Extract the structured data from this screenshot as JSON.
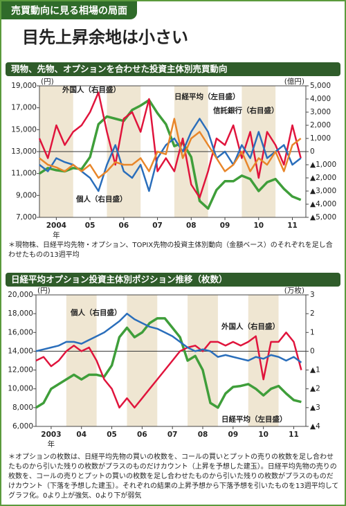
{
  "header": {
    "tag": "売買動向に見る相場の局面",
    "title": "目先上昇余地は小さい"
  },
  "chart_data": [
    {
      "type": "line",
      "title": "現物、先物、オプションを合わせた投資主体別売買動向",
      "y_unit": "(円)",
      "y2_unit": "(億円)",
      "x_label": "年",
      "note": "＊現物株、日経平均先物・オプション、TOPIX先物の投資主体別動向（金額ベース）のそれぞれを足し合わせたものの13週平均",
      "x": [
        2004,
        2004.25,
        2004.5,
        2004.75,
        2005,
        2005.25,
        2005.5,
        2005.75,
        2006,
        2006.25,
        2006.5,
        2006.75,
        2007,
        2007.25,
        2007.5,
        2007.75,
        2008,
        2008.25,
        2008.5,
        2008.75,
        2009,
        2009.25,
        2009.5,
        2009.75,
        2010,
        2010.25,
        2010.5,
        2010.75,
        2011,
        2011.25,
        2011.5,
        2011.75
      ],
      "xlim": [
        2004,
        2011.9
      ],
      "xticks": [
        {
          "value": 2004.5,
          "label": "2004"
        },
        {
          "value": 2005.5,
          "label": "05"
        },
        {
          "value": 2006.5,
          "label": "06"
        },
        {
          "value": 2007.5,
          "label": "07"
        },
        {
          "value": 2008.5,
          "label": "08"
        },
        {
          "value": 2009.5,
          "label": "09"
        },
        {
          "value": 2010.5,
          "label": "10"
        },
        {
          "value": 2011.5,
          "label": "11"
        }
      ],
      "ylim": [
        7000,
        19000
      ],
      "yticks": [
        {
          "value": 7000,
          "label": "7,000"
        },
        {
          "value": 9000,
          "label": "9,000"
        },
        {
          "value": 11000,
          "label": "11,000"
        },
        {
          "value": 13000,
          "label": "13,000"
        },
        {
          "value": 15000,
          "label": "15,000"
        },
        {
          "value": 17000,
          "label": "17,000"
        },
        {
          "value": 19000,
          "label": "19,000"
        }
      ],
      "y2lim": [
        -5000,
        5000
      ],
      "y2ticks": [
        {
          "value": -5000,
          "label": "▲5,000"
        },
        {
          "value": -4000,
          "label": "▲4,000"
        },
        {
          "value": -3000,
          "label": "▲3,000"
        },
        {
          "value": -2000,
          "label": "▲2,000"
        },
        {
          "value": -1000,
          "label": "▲1,000"
        },
        0,
        {
          "value": 1000,
          "label": "1,000"
        },
        {
          "value": 2000,
          "label": "2,000"
        },
        {
          "value": 3000,
          "label": "3,000"
        },
        {
          "value": 4000,
          "label": "4,000"
        },
        {
          "value": 5000,
          "label": "5,000"
        }
      ],
      "series": [
        {
          "name": "日経平均（左目盛）",
          "color": "#3f9e3a",
          "axis": "y",
          "values": [
            11000,
            11500,
            11300,
            11200,
            11500,
            11400,
            12500,
            15500,
            16200,
            16000,
            15800,
            16800,
            17200,
            17700,
            16500,
            15500,
            13500,
            13800,
            12500,
            8500,
            7800,
            9500,
            10300,
            10300,
            10800,
            10500,
            9400,
            10200,
            10500,
            9600,
            8900,
            8600
          ]
        },
        {
          "name": "外国人（右目盛）",
          "color": "#e0143c",
          "axis": "y2",
          "values": [
            1000,
            -500,
            2000,
            500,
            1500,
            2000,
            3000,
            4500,
            1500,
            -1000,
            2500,
            3000,
            1500,
            4000,
            -1500,
            -500,
            -1500,
            1000,
            -2500,
            -3500,
            -1500,
            1000,
            500,
            2000,
            -500,
            1500,
            -2000,
            1500,
            500,
            -1000,
            2000,
            -500
          ]
        },
        {
          "name": "個人（右目盛）",
          "color": "#2a6ebb",
          "axis": "y2",
          "values": [
            -1000,
            -1500,
            -500,
            -800,
            -1000,
            -1500,
            -2000,
            -3000,
            -1000,
            500,
            -1500,
            -2000,
            -1000,
            -3000,
            -500,
            500,
            1000,
            0,
            1500,
            2500,
            1500,
            -500,
            0,
            -1000,
            500,
            -500,
            1500,
            -500,
            0,
            500,
            -1000,
            -500
          ]
        },
        {
          "name": "信託銀行（右目盛）",
          "color": "#e8862a",
          "axis": "y2",
          "values": [
            -500,
            -1000,
            -1200,
            -1500,
            -1000,
            -1500,
            -1000,
            -2000,
            -1500,
            -800,
            -1000,
            -1000,
            -500,
            -1500,
            0,
            -200,
            2500,
            -500,
            1000,
            1500,
            500,
            -500,
            -1500,
            -1000,
            0,
            -1500,
            -500,
            -1000,
            0,
            -1500,
            500,
            1000
          ]
        }
      ]
    },
    {
      "type": "line",
      "title": "日経平均オプション投資主体別ポジション推移（枚数）",
      "y_unit": "(円)",
      "y2_unit": "(万枚)",
      "x_label": "年",
      "note": "＊オプションの枚数は、日経平均先物の買いの枚数を、コールの買いとプットの売りの枚数を足し合わせたものから引いた残りの枚数がプラスのものだけカウント（上昇を予想した建玉）。日経平均先物の売りの枚数を、コールの売りとプットの買いの枚数を足し合わせたものから引いた残りの枚数がプラスのものだけカウント（下落を予想した建玉）。それぞれの結果の上昇予想から下落予想を引いたものを13週平均してグラフ化。0より上が強気、0より下が弱気",
      "x": [
        2003,
        2003.25,
        2003.5,
        2003.75,
        2004,
        2004.25,
        2004.5,
        2004.75,
        2005,
        2005.25,
        2005.5,
        2005.75,
        2006,
        2006.25,
        2006.5,
        2006.75,
        2007,
        2007.25,
        2007.5,
        2007.75,
        2008,
        2008.25,
        2008.5,
        2008.75,
        2009,
        2009.25,
        2009.5,
        2009.75,
        2010,
        2010.25,
        2010.5,
        2010.75,
        2011,
        2011.25,
        2011.5,
        2011.75
      ],
      "xlim": [
        2003,
        2011.9
      ],
      "xticks": [
        {
          "value": 2003.5,
          "label": "2003"
        },
        {
          "value": 2004.5,
          "label": "04"
        },
        {
          "value": 2005.5,
          "label": "05"
        },
        {
          "value": 2006.5,
          "label": "06"
        },
        {
          "value": 2007.5,
          "label": "07"
        },
        {
          "value": 2008.5,
          "label": "08"
        },
        {
          "value": 2009.5,
          "label": "09"
        },
        {
          "value": 2010.5,
          "label": "10"
        },
        {
          "value": 2011.5,
          "label": "11"
        }
      ],
      "ylim": [
        6000,
        20000
      ],
      "yticks": [
        {
          "value": 6000,
          "label": "6,000"
        },
        {
          "value": 8000,
          "label": "8,000"
        },
        {
          "value": 10000,
          "label": "10,000"
        },
        {
          "value": 12000,
          "label": "12,000"
        },
        {
          "value": 14000,
          "label": "14,000"
        },
        {
          "value": 16000,
          "label": "16,000"
        },
        {
          "value": 18000,
          "label": "18,000"
        },
        {
          "value": 20000,
          "label": "20,000"
        }
      ],
      "y2lim": [
        -4,
        3
      ],
      "y2ticks": [
        {
          "value": -4,
          "label": "▲4"
        },
        {
          "value": -3,
          "label": "▲3"
        },
        {
          "value": -2,
          "label": "▲2"
        },
        {
          "value": -1,
          "label": "▲1"
        },
        0,
        1,
        2,
        3
      ],
      "series": [
        {
          "name": "日経平均（左目盛）",
          "color": "#3f9e3a",
          "axis": "y",
          "values": [
            8000,
            8500,
            10000,
            10500,
            11000,
            11500,
            11000,
            11500,
            11500,
            11300,
            12500,
            15500,
            16500,
            15500,
            16000,
            17000,
            17500,
            17500,
            16500,
            15500,
            13000,
            13500,
            12000,
            8500,
            8000,
            9500,
            10200,
            10300,
            10500,
            10000,
            9300,
            10000,
            10300,
            9500,
            8800,
            8600
          ]
        },
        {
          "name": "外国人（右目盛）",
          "color": "#e0143c",
          "axis": "y2",
          "values": [
            -0.5,
            -0.3,
            -0.8,
            -0.5,
            0,
            0.3,
            0,
            0.2,
            -0.5,
            -1.5,
            -2,
            -3,
            -2.5,
            -3,
            -2.5,
            -2,
            -1.5,
            -1,
            -0.5,
            0,
            0.2,
            0.3,
            0,
            0.5,
            0.5,
            0.3,
            0.5,
            0.3,
            0.5,
            0.8,
            -1.5,
            0.5,
            0.5,
            1,
            0.5,
            -1
          ]
        },
        {
          "name": "個人（右目盛）",
          "color": "#2a6ebb",
          "axis": "y2",
          "values": [
            0,
            0.1,
            0.2,
            0.3,
            0.5,
            0.5,
            0.4,
            0.6,
            0.8,
            1,
            1.3,
            1.6,
            2,
            1.7,
            1.5,
            1.3,
            1.2,
            1,
            0.8,
            0.5,
            0.2,
            0,
            0.1,
            0,
            -0.3,
            -0.2,
            -0.3,
            -0.4,
            -0.5,
            -0.3,
            -0.4,
            -0.2,
            -0.3,
            -0.5,
            -0.3,
            -0.6
          ]
        }
      ]
    }
  ]
}
